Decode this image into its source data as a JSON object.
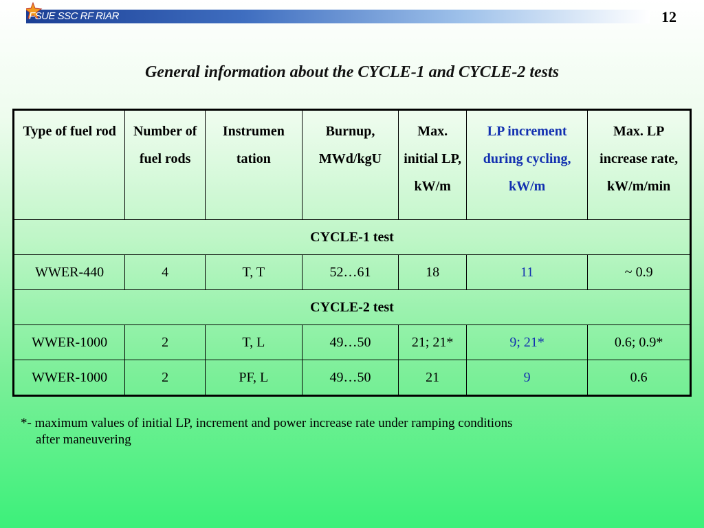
{
  "header": {
    "logo_text": "FSUE SSC RF RIAR",
    "page_number": "12"
  },
  "title": "General information about the CYCLE-1 and CYCLE-2 tests",
  "table": {
    "columns": [
      "Type of fuel rod",
      "Number of fuel rods",
      "Instrumen tation",
      "Burnup, MWd/kgU",
      "Max. initial LP, kW/m",
      "LP increment during cycling, kW/m",
      "Max. LP increase rate, kW/m/min"
    ],
    "sections": [
      {
        "label": "CYCLE-1 test",
        "rows": [
          [
            "WWER-440",
            "4",
            "T, T",
            "52…61",
            "18",
            "11",
            "~ 0.9"
          ]
        ]
      },
      {
        "label": "CYCLE-2 test",
        "rows": [
          [
            "WWER-1000",
            "2",
            "T, L",
            "49…50",
            "21; 21*",
            "9; 21*",
            "0.6; 0.9*"
          ],
          [
            "WWER-1000",
            "2",
            "PF, L",
            "49…50",
            "21",
            "9",
            "0.6"
          ]
        ]
      }
    ],
    "highlight_column_color": "#1230b0"
  },
  "footnote": {
    "line1": "*- maximum values of initial LP, increment and power increase rate under ramping conditions",
    "line2": "after maneuvering"
  }
}
